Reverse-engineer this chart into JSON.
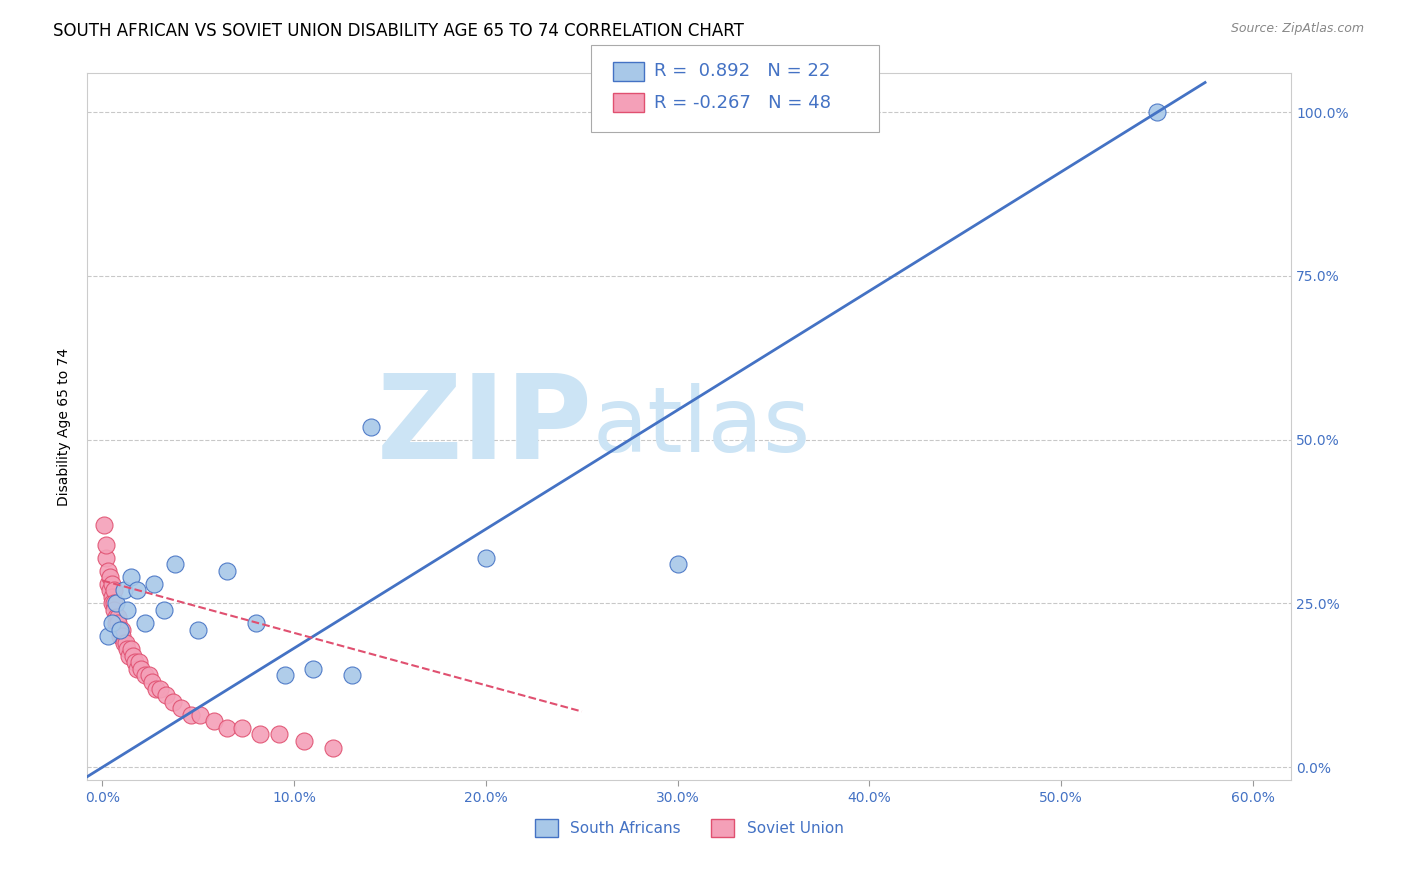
{
  "title": "SOUTH AFRICAN VS SOVIET UNION DISABILITY AGE 65 TO 74 CORRELATION CHART",
  "source": "Source: ZipAtlas.com",
  "ylabel": "Disability Age 65 to 74",
  "xlabel_ticks": [
    "0.0%",
    "10.0%",
    "20.0%",
    "30.0%",
    "40.0%",
    "50.0%",
    "60.0%"
  ],
  "xlabel_vals": [
    0.0,
    0.1,
    0.2,
    0.3,
    0.4,
    0.5,
    0.6
  ],
  "ylabel_ticks": [
    "0.0%",
    "25.0%",
    "50.0%",
    "75.0%",
    "100.0%"
  ],
  "ylabel_vals": [
    0.0,
    0.25,
    0.5,
    0.75,
    1.0
  ],
  "xlim": [
    -0.008,
    0.62
  ],
  "ylim": [
    -0.02,
    1.06
  ],
  "south_african_x": [
    0.003,
    0.005,
    0.007,
    0.009,
    0.011,
    0.013,
    0.015,
    0.018,
    0.022,
    0.027,
    0.032,
    0.038,
    0.05,
    0.065,
    0.08,
    0.095,
    0.11,
    0.13,
    0.14,
    0.2,
    0.3,
    0.55
  ],
  "south_african_y": [
    0.2,
    0.22,
    0.25,
    0.21,
    0.27,
    0.24,
    0.29,
    0.27,
    0.22,
    0.28,
    0.24,
    0.31,
    0.21,
    0.3,
    0.22,
    0.14,
    0.15,
    0.14,
    0.52,
    0.32,
    0.31,
    1.0
  ],
  "soviet_x": [
    0.001,
    0.002,
    0.002,
    0.003,
    0.003,
    0.004,
    0.004,
    0.005,
    0.005,
    0.005,
    0.006,
    0.006,
    0.006,
    0.007,
    0.007,
    0.008,
    0.008,
    0.009,
    0.009,
    0.01,
    0.01,
    0.011,
    0.012,
    0.013,
    0.014,
    0.015,
    0.016,
    0.017,
    0.018,
    0.019,
    0.02,
    0.022,
    0.024,
    0.026,
    0.028,
    0.03,
    0.033,
    0.037,
    0.041,
    0.046,
    0.051,
    0.058,
    0.065,
    0.073,
    0.082,
    0.092,
    0.105,
    0.12
  ],
  "soviet_y": [
    0.37,
    0.32,
    0.34,
    0.3,
    0.28,
    0.29,
    0.27,
    0.28,
    0.26,
    0.25,
    0.27,
    0.25,
    0.24,
    0.23,
    0.22,
    0.23,
    0.22,
    0.21,
    0.2,
    0.21,
    0.2,
    0.19,
    0.19,
    0.18,
    0.17,
    0.18,
    0.17,
    0.16,
    0.15,
    0.16,
    0.15,
    0.14,
    0.14,
    0.13,
    0.12,
    0.12,
    0.11,
    0.1,
    0.09,
    0.08,
    0.08,
    0.07,
    0.06,
    0.06,
    0.05,
    0.05,
    0.04,
    0.03
  ],
  "sa_color": "#a8c8e8",
  "sa_edge_color": "#4472c4",
  "soviet_color": "#f4a0b8",
  "soviet_edge_color": "#e05070",
  "sa_line_color": "#4472c4",
  "soviet_line_color": "#e05070",
  "sa_R": "0.892",
  "sa_N": "22",
  "soviet_R": "-0.267",
  "soviet_N": "48",
  "watermark_zip": "ZIP",
  "watermark_atlas": "atlas",
  "watermark_color": "#cce4f5",
  "background_color": "#ffffff",
  "grid_color": "#bbbbbb",
  "title_fontsize": 12,
  "axis_label_fontsize": 10,
  "tick_fontsize": 10,
  "legend_fontsize": 12
}
